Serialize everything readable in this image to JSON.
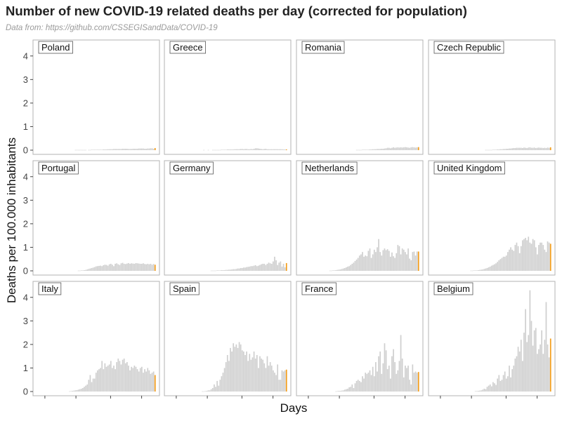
{
  "title": "Number of new COVID-19 related deaths per day (corrected for population)",
  "subtitle": "Data from: https://github.com/CSSEGISandData/COVID-19",
  "colors": {
    "bar": "#cfcfcf",
    "highlight": "#f39c18",
    "panel_border": "#b3b3b3",
    "strip_border": "#555555"
  },
  "chart_data": {
    "type": "bar",
    "xlabel": "Days",
    "ylabel": "Deaths per 100.000 inhabitants",
    "ylim": [
      0,
      4.5
    ],
    "yticks": [
      0,
      1,
      2,
      3,
      4
    ],
    "grid": false,
    "facets": [
      "Poland",
      "Greece",
      "Romania",
      "Czech Republic",
      "Portugal",
      "Germany",
      "Netherlands",
      "United Kingdom",
      "Italy",
      "Spain",
      "France",
      "Belgium"
    ],
    "series": [
      {
        "name": "Poland",
        "values": [
          0,
          0,
          0,
          0,
          0,
          0,
          0,
          0,
          0,
          0,
          0,
          0,
          0,
          0,
          0,
          0,
          0,
          0,
          0,
          0,
          0,
          0,
          0,
          0,
          0,
          0,
          0.01,
          0.01,
          0.01,
          0.01,
          0.01,
          0.01,
          0.01,
          0.01,
          0,
          0.01,
          0.01,
          0.02,
          0.02,
          0.02,
          0.02,
          0.02,
          0.02,
          0.02,
          0.02,
          0.03,
          0.03,
          0.03,
          0.04,
          0.04,
          0.04,
          0.04,
          0.05,
          0.05,
          0.05,
          0.05,
          0.05,
          0.05,
          0.06,
          0.06,
          0.06,
          0.06,
          0.05,
          0.05,
          0.05,
          0.06,
          0.06,
          0.06,
          0.06,
          0.07,
          0.07,
          0.07,
          0.07,
          0.06,
          0.06,
          0.07,
          0.07,
          0.08,
          0.08,
          0.06,
          0.09
        ]
      },
      {
        "name": "Greece",
        "values": [
          0,
          0,
          0,
          0,
          0,
          0,
          0,
          0,
          0,
          0,
          0,
          0,
          0,
          0,
          0,
          0,
          0,
          0,
          0,
          0,
          0,
          0,
          0,
          0,
          0.01,
          0,
          0,
          0.01,
          0,
          0,
          0.01,
          0.01,
          0.01,
          0.01,
          0.01,
          0.01,
          0.02,
          0.02,
          0.02,
          0.02,
          0.03,
          0.03,
          0.03,
          0.03,
          0.03,
          0.04,
          0.04,
          0.04,
          0.04,
          0.05,
          0.05,
          0.04,
          0.05,
          0.05,
          0.04,
          0.04,
          0.05,
          0.04,
          0.06,
          0.08,
          0.08,
          0.07,
          0.06,
          0.05,
          0.04,
          0.05,
          0.06,
          0.04,
          0.04,
          0.04,
          0.04,
          0.04,
          0.04,
          0.04,
          0.04,
          0.04,
          0.04,
          0.04,
          0.03,
          0.03,
          0.03
        ]
      },
      {
        "name": "Romania",
        "values": [
          0,
          0,
          0,
          0,
          0,
          0,
          0,
          0,
          0,
          0,
          0,
          0,
          0,
          0,
          0,
          0,
          0,
          0,
          0,
          0,
          0,
          0,
          0,
          0,
          0,
          0,
          0,
          0,
          0,
          0,
          0,
          0,
          0,
          0,
          0,
          0,
          0,
          0,
          0.01,
          0.01,
          0.01,
          0.01,
          0.02,
          0.02,
          0.02,
          0.02,
          0.02,
          0.03,
          0.03,
          0.04,
          0.04,
          0.04,
          0.05,
          0.05,
          0.05,
          0.06,
          0.06,
          0.07,
          0.08,
          0.1,
          0.1,
          0.08,
          0.1,
          0.12,
          0.1,
          0.11,
          0.12,
          0.11,
          0.12,
          0.11,
          0.12,
          0.13,
          0.12,
          0.11,
          0.1,
          0.12,
          0.13,
          0.12,
          0.11,
          0.12,
          0.13
        ]
      },
      {
        "name": "Czech Republic",
        "values": [
          0,
          0,
          0,
          0,
          0,
          0,
          0,
          0,
          0,
          0,
          0,
          0,
          0,
          0,
          0,
          0,
          0,
          0,
          0,
          0,
          0,
          0,
          0,
          0,
          0,
          0,
          0,
          0,
          0,
          0,
          0,
          0,
          0,
          0,
          0,
          0,
          0.01,
          0.01,
          0.01,
          0.01,
          0.01,
          0.02,
          0.02,
          0.02,
          0.03,
          0.03,
          0.04,
          0.04,
          0.05,
          0.05,
          0.06,
          0.06,
          0.07,
          0.07,
          0.08,
          0.09,
          0.09,
          0.1,
          0.1,
          0.1,
          0.1,
          0.09,
          0.11,
          0.1,
          0.09,
          0.11,
          0.12,
          0.1,
          0.1,
          0.11,
          0.09,
          0.1,
          0.11,
          0.1,
          0.1,
          0.09,
          0.1,
          0.09,
          0.11,
          0.1,
          0.12
        ]
      },
      {
        "name": "Portugal",
        "values": [
          0,
          0,
          0,
          0,
          0,
          0,
          0,
          0,
          0,
          0,
          0,
          0,
          0,
          0,
          0,
          0,
          0,
          0,
          0,
          0,
          0,
          0,
          0,
          0,
          0,
          0,
          0,
          0,
          0.01,
          0.01,
          0.02,
          0.02,
          0.03,
          0.04,
          0.06,
          0.08,
          0.1,
          0.12,
          0.14,
          0.16,
          0.19,
          0.2,
          0.21,
          0.22,
          0.2,
          0.24,
          0.26,
          0.25,
          0.22,
          0.28,
          0.3,
          0.26,
          0.2,
          0.3,
          0.32,
          0.28,
          0.25,
          0.32,
          0.34,
          0.3,
          0.29,
          0.31,
          0.33,
          0.3,
          0.32,
          0.31,
          0.3,
          0.33,
          0.32,
          0.31,
          0.3,
          0.3,
          0.32,
          0.29,
          0.28,
          0.3,
          0.28,
          0.3,
          0.26,
          0.29,
          0.26
        ]
      },
      {
        "name": "Germany",
        "values": [
          0,
          0,
          0,
          0,
          0,
          0,
          0,
          0,
          0,
          0,
          0,
          0,
          0,
          0,
          0,
          0,
          0,
          0,
          0,
          0,
          0,
          0,
          0,
          0,
          0,
          0,
          0,
          0,
          0,
          0.01,
          0.01,
          0.01,
          0.01,
          0.02,
          0.02,
          0.02,
          0.03,
          0.03,
          0.03,
          0.04,
          0.04,
          0.05,
          0.05,
          0.06,
          0.07,
          0.07,
          0.08,
          0.1,
          0.1,
          0.12,
          0.12,
          0.14,
          0.14,
          0.16,
          0.17,
          0.18,
          0.2,
          0.2,
          0.22,
          0.24,
          0.2,
          0.22,
          0.25,
          0.28,
          0.3,
          0.3,
          0.25,
          0.3,
          0.35,
          0.32,
          0.3,
          0.4,
          0.6,
          0.45,
          0.25,
          0.35,
          0.4,
          0.18,
          0.3,
          0.15,
          0.33
        ]
      },
      {
        "name": "Netherlands",
        "values": [
          0,
          0,
          0,
          0,
          0,
          0,
          0,
          0,
          0,
          0,
          0,
          0,
          0,
          0,
          0,
          0,
          0,
          0,
          0,
          0,
          0.01,
          0.01,
          0.02,
          0.02,
          0.03,
          0.04,
          0.05,
          0.06,
          0.08,
          0.1,
          0.12,
          0.15,
          0.18,
          0.2,
          0.25,
          0.3,
          0.35,
          0.42,
          0.48,
          0.55,
          0.65,
          0.7,
          0.8,
          0.6,
          0.65,
          0.62,
          0.85,
          0.95,
          0.55,
          0.7,
          0.9,
          0.8,
          1.0,
          1.35,
          0.8,
          0.65,
          0.88,
          0.95,
          0.88,
          0.92,
          0.85,
          0.6,
          0.78,
          0.62,
          0.55,
          0.75,
          1.1,
          1.05,
          0.7,
          0.95,
          0.9,
          0.8,
          0.7,
          0.95,
          0.52,
          0.45,
          0.8,
          0.82,
          0.65,
          0.82,
          0.82
        ]
      },
      {
        "name": "United Kingdom",
        "values": [
          0,
          0,
          0,
          0,
          0,
          0,
          0,
          0,
          0,
          0,
          0,
          0,
          0,
          0,
          0,
          0,
          0,
          0,
          0,
          0,
          0,
          0,
          0,
          0,
          0,
          0,
          0.01,
          0.01,
          0.02,
          0.02,
          0.02,
          0.03,
          0.04,
          0.05,
          0.06,
          0.08,
          0.1,
          0.12,
          0.15,
          0.18,
          0.22,
          0.25,
          0.28,
          0.32,
          0.38,
          0.45,
          0.5,
          0.55,
          0.6,
          0.6,
          0.65,
          0.8,
          0.9,
          1.0,
          0.9,
          0.85,
          1.1,
          1.2,
          1.05,
          0.75,
          1.05,
          1.3,
          1.35,
          1.4,
          1.3,
          1.45,
          1.2,
          1.15,
          1.35,
          1.3,
          1.0,
          0.7,
          1.1,
          1.2,
          1.2,
          1.1,
          0.9,
          0.8,
          1.25,
          1.2,
          1.15
        ]
      },
      {
        "name": "Italy",
        "values": [
          0,
          0,
          0,
          0,
          0,
          0,
          0,
          0,
          0,
          0,
          0,
          0,
          0,
          0,
          0,
          0,
          0,
          0,
          0,
          0,
          0,
          0,
          0.01,
          0.02,
          0.03,
          0.04,
          0.05,
          0.06,
          0.08,
          0.1,
          0.12,
          0.15,
          0.2,
          0.25,
          0.3,
          0.5,
          0.7,
          0.4,
          0.55,
          0.55,
          0.8,
          0.9,
          0.95,
          1.0,
          1.3,
          0.95,
          1.2,
          1.05,
          1.1,
          1.15,
          1.3,
          1.0,
          1.1,
          0.95,
          1.25,
          1.4,
          1.3,
          1.15,
          1.35,
          1.4,
          1.2,
          1.25,
          1.1,
          0.9,
          1.05,
          1.0,
          1.1,
          1.05,
          0.95,
          0.85,
          1.0,
          1.05,
          0.8,
          0.95,
          0.85,
          1.0,
          0.9,
          0.75,
          0.8,
          0.85,
          0.7
        ]
      },
      {
        "name": "Spain",
        "values": [
          0,
          0,
          0,
          0,
          0,
          0,
          0,
          0,
          0,
          0,
          0,
          0,
          0,
          0,
          0,
          0,
          0,
          0,
          0,
          0,
          0,
          0,
          0,
          0.01,
          0.01,
          0.02,
          0.03,
          0.05,
          0.05,
          0.1,
          0.15,
          0.3,
          0.2,
          0.45,
          0.25,
          0.5,
          0.65,
          0.8,
          1.0,
          1.25,
          1.55,
          1.3,
          1.85,
          1.7,
          2.05,
          1.9,
          2.0,
          1.85,
          2.1,
          2.0,
          1.75,
          1.7,
          1.55,
          1.7,
          1.3,
          1.6,
          1.35,
          1.45,
          1.7,
          1.4,
          1.55,
          1.0,
          1.5,
          1.4,
          1.35,
          1.2,
          1.0,
          1.5,
          1.1,
          1.25,
          1.1,
          0.9,
          0.8,
          0.7,
          1.15,
          0.5,
          0.5,
          0.9,
          0.85,
          0.9,
          0.93
        ]
      },
      {
        "name": "France",
        "values": [
          0,
          0,
          0,
          0,
          0,
          0,
          0,
          0,
          0,
          0,
          0,
          0,
          0,
          0,
          0,
          0,
          0,
          0,
          0,
          0,
          0,
          0,
          0,
          0,
          0.01,
          0.02,
          0.03,
          0.03,
          0.04,
          0.05,
          0.08,
          0.1,
          0.12,
          0.18,
          0.2,
          0.3,
          0.15,
          0.35,
          0.45,
          0.5,
          0.45,
          0.4,
          0.65,
          0.55,
          0.8,
          0.75,
          0.8,
          0.9,
          0.7,
          1.05,
          0.65,
          1.25,
          0.85,
          1.5,
          1.7,
          0.75,
          1.2,
          2.05,
          1.75,
          0.95,
          1.1,
          0.55,
          1.5,
          1.8,
          1.25,
          0.75,
          0.9,
          1.3,
          2.4,
          1.4,
          0.6,
          1.1,
          1.0,
          1.1,
          0.5,
          0.3,
          1.15,
          0.8,
          0.85,
          0.8,
          0.83
        ]
      },
      {
        "name": "Belgium",
        "values": [
          0,
          0,
          0,
          0,
          0,
          0,
          0,
          0,
          0,
          0,
          0,
          0,
          0,
          0,
          0,
          0,
          0,
          0,
          0,
          0,
          0,
          0,
          0,
          0,
          0,
          0,
          0,
          0,
          0,
          0.02,
          0.02,
          0.03,
          0.04,
          0.05,
          0.08,
          0.12,
          0.1,
          0.2,
          0.25,
          0.3,
          0.22,
          0.4,
          0.35,
          0.28,
          0.55,
          0.7,
          0.45,
          0.5,
          0.7,
          0.85,
          0.55,
          0.65,
          1.1,
          0.6,
          0.95,
          1.1,
          1.4,
          1.5,
          1.9,
          1.7,
          2.2,
          1.3,
          2.5,
          3.5,
          2.1,
          2.4,
          4.3,
          3.0,
          1.95,
          2.6,
          2.7,
          1.6,
          1.8,
          2.0,
          2.6,
          1.6,
          2.2,
          3.8,
          2.0,
          1.45,
          2.25
        ]
      }
    ]
  }
}
